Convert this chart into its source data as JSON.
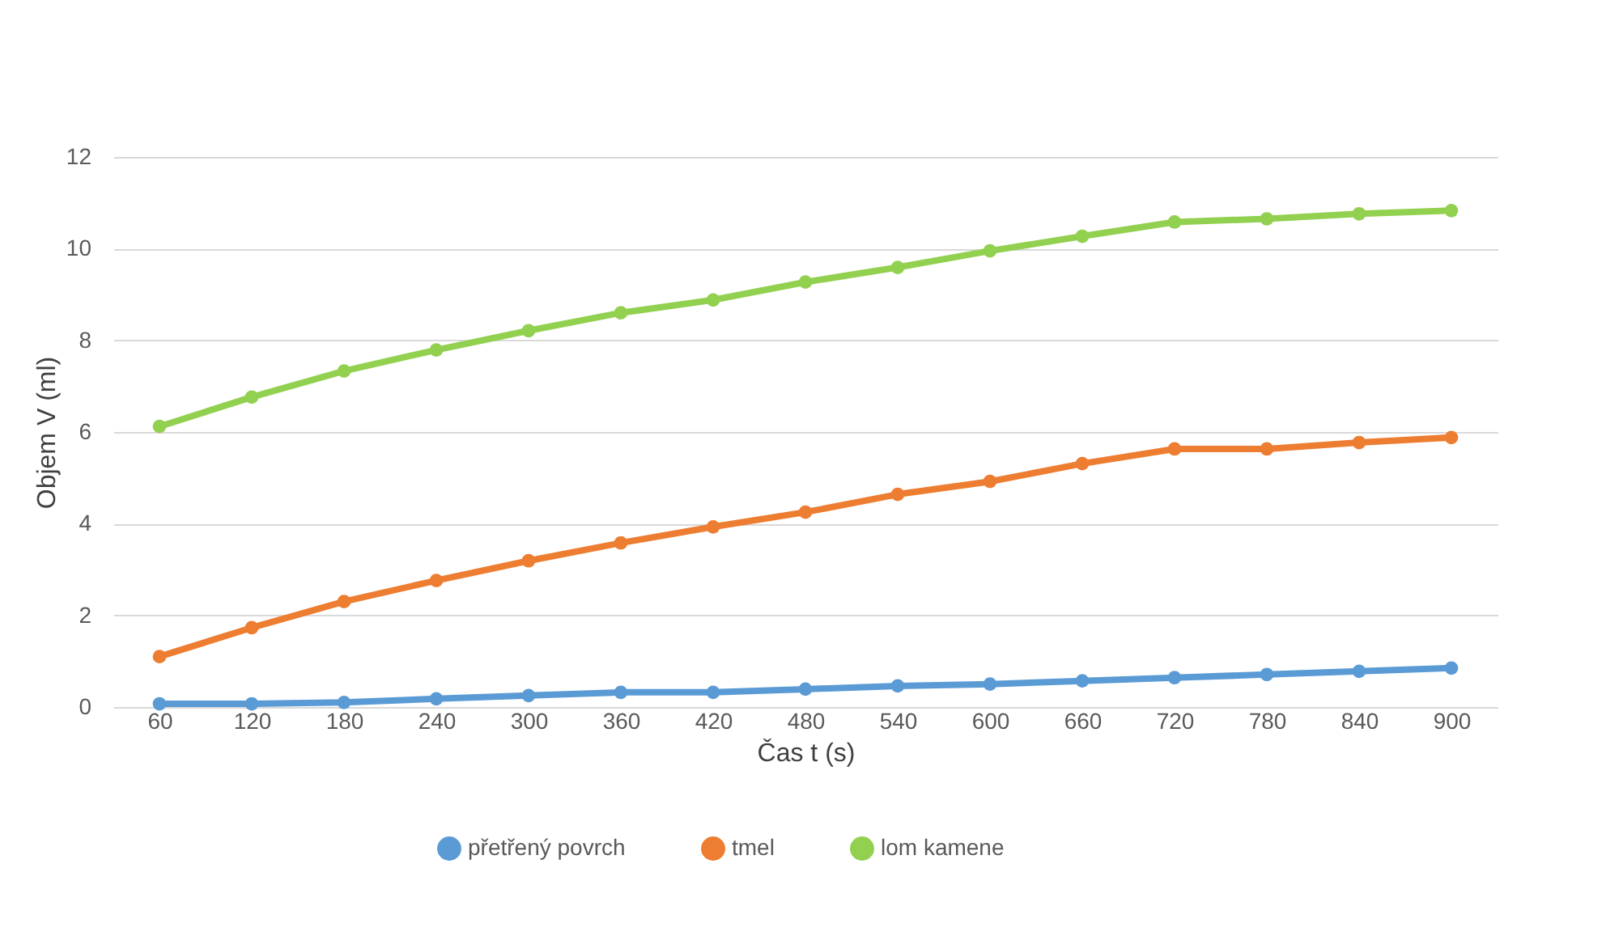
{
  "chart_data": {
    "type": "line",
    "xlabel": "Čas t (s)",
    "ylabel": "Objem V (ml)",
    "categories": [
      "60",
      "120",
      "180",
      "240",
      "300",
      "360",
      "420",
      "480",
      "540",
      "600",
      "660",
      "720",
      "780",
      "840",
      "900"
    ],
    "series": [
      {
        "name": "přetřený povrch",
        "color": "#5b9bd5",
        "values": [
          0.07,
          0.07,
          0.1,
          0.18,
          0.25,
          0.32,
          0.32,
          0.39,
          0.46,
          0.5,
          0.57,
          0.64,
          0.71,
          0.78,
          0.85
        ]
      },
      {
        "name": "tmel",
        "color": "#ed7d31",
        "values": [
          1.1,
          1.73,
          2.3,
          2.76,
          3.19,
          3.58,
          3.93,
          4.25,
          4.64,
          4.92,
          5.31,
          5.63,
          5.63,
          5.77,
          5.88
        ]
      },
      {
        "name": "lom kamene",
        "color": "#92d050",
        "values": [
          6.12,
          6.76,
          7.33,
          7.79,
          8.21,
          8.6,
          8.88,
          9.27,
          9.59,
          9.95,
          10.27,
          10.58,
          10.65,
          10.76,
          10.83
        ]
      }
    ],
    "ylim": [
      0,
      12
    ],
    "yticks": [
      0,
      2,
      4,
      6,
      8,
      10,
      12
    ],
    "grid": "y",
    "legend": "bottom",
    "marker": "circle",
    "line_style": "solid"
  }
}
